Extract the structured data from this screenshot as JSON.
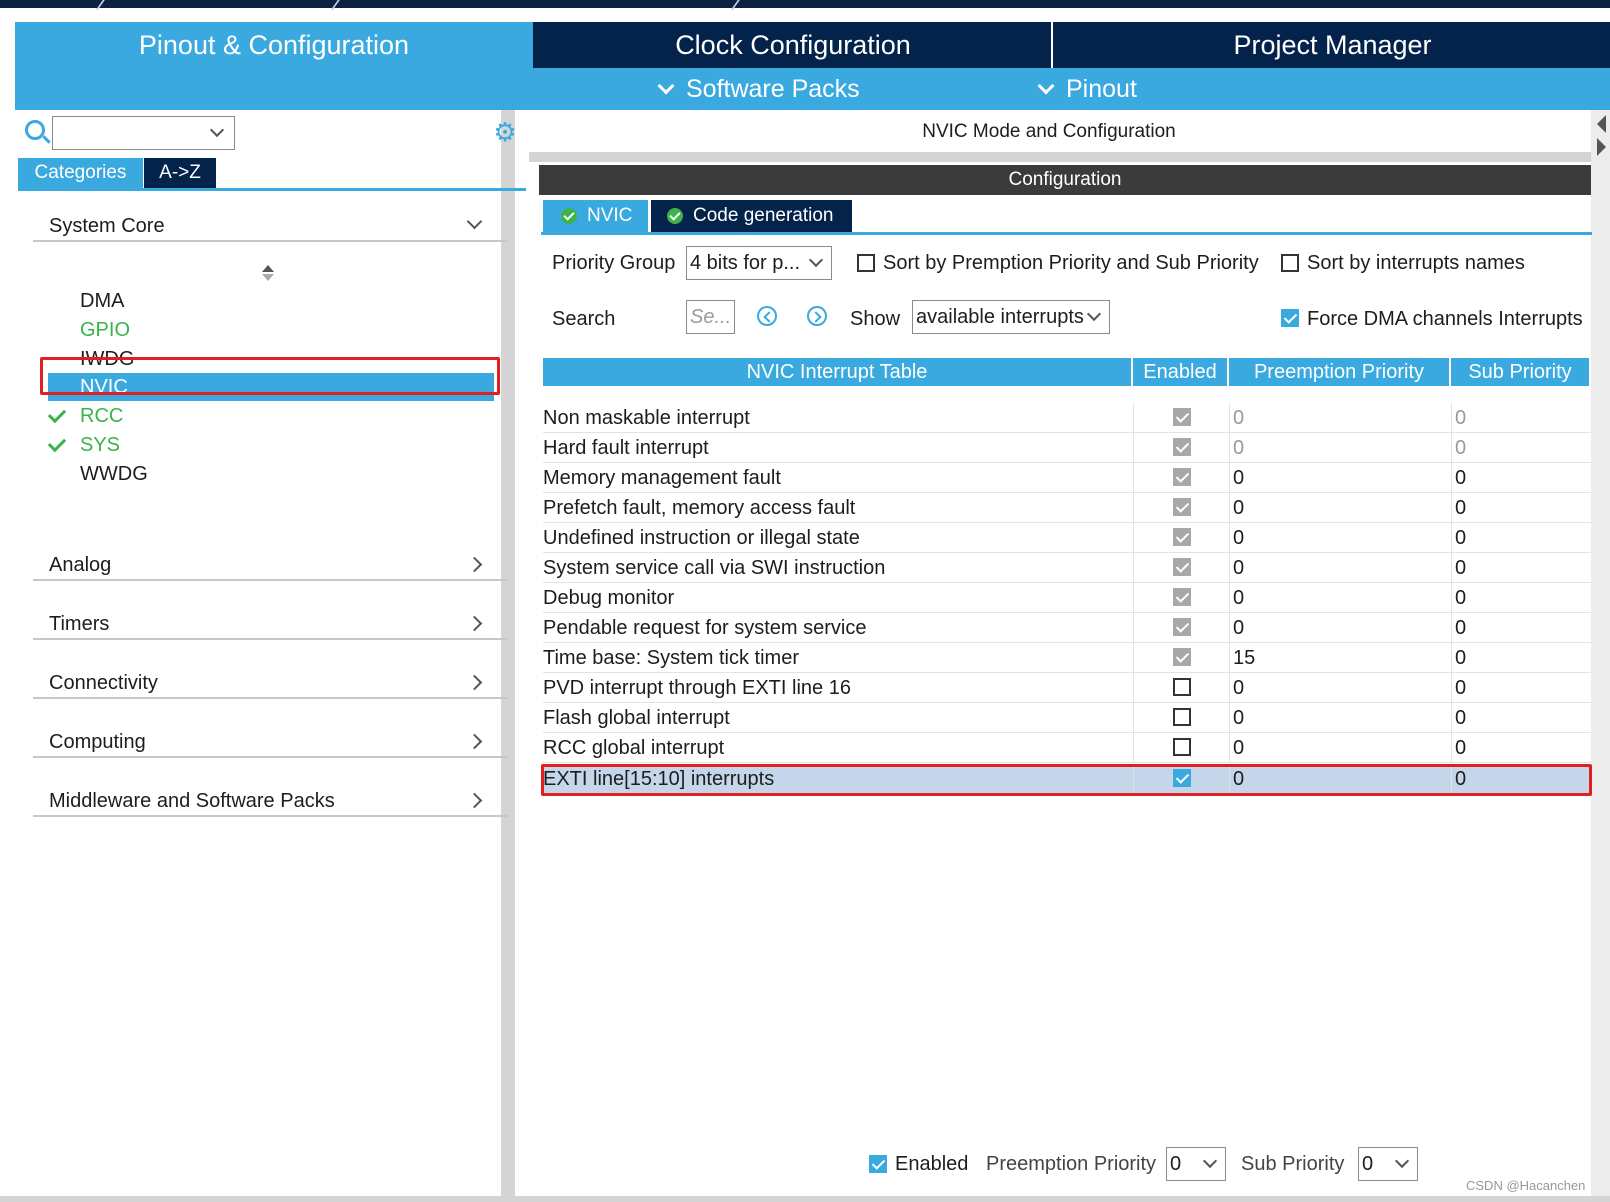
{
  "tabs": {
    "pinout": "Pinout & Configuration",
    "clock": "Clock Configuration",
    "project": "Project Manager"
  },
  "subbar": {
    "software_packs": "Software Packs",
    "pinout": "Pinout"
  },
  "left": {
    "search_value": "",
    "tab_categories": "Categories",
    "tab_az": "A->Z",
    "sections": {
      "system_core": "System Core",
      "analog": "Analog",
      "timers": "Timers",
      "connectivity": "Connectivity",
      "computing": "Computing",
      "middleware": "Middleware and Software Packs"
    },
    "system_core_items": {
      "dma": "DMA",
      "gpio": "GPIO",
      "iwdg": "IWDG",
      "nvic": "NVIC",
      "rcc": "RCC",
      "sys": "SYS",
      "wwdg": "WWDG"
    }
  },
  "right": {
    "mode_title": "NVIC Mode and Configuration",
    "config_title": "Configuration",
    "cfg_tabs": {
      "nvic": "NVIC",
      "code": "Code generation"
    },
    "priority_group_label": "Priority Group",
    "priority_group_value": "4 bits for p...",
    "sort_premption_label": "Sort by Premption Priority and Sub Priority",
    "sort_names_label": "Sort by interrupts names",
    "search_label": "Search",
    "search_placeholder": "Se...",
    "show_label": "Show",
    "show_value": "available interrupts",
    "force_dma_label": "Force DMA channels Interrupts",
    "table_headers": {
      "name": "NVIC Interrupt Table",
      "enabled": "Enabled",
      "preemption": "Preemption Priority",
      "sub": "Sub Priority"
    },
    "rows": [
      {
        "name": "Non maskable interrupt",
        "enabled": true,
        "preemption": "0",
        "sub": "0"
      },
      {
        "name": "Hard fault interrupt",
        "enabled": true,
        "preemption": "0",
        "sub": "0"
      },
      {
        "name": "Memory management fault",
        "enabled": true,
        "preemption": "0",
        "sub": "0"
      },
      {
        "name": "Prefetch fault, memory access fault",
        "enabled": true,
        "preemption": "0",
        "sub": "0"
      },
      {
        "name": "Undefined instruction or illegal state",
        "enabled": true,
        "preemption": "0",
        "sub": "0"
      },
      {
        "name": "System service call via SWI instruction",
        "enabled": true,
        "preemption": "0",
        "sub": "0"
      },
      {
        "name": "Debug monitor",
        "enabled": true,
        "preemption": "0",
        "sub": "0"
      },
      {
        "name": "Pendable request for system service",
        "enabled": true,
        "preemption": "0",
        "sub": "0"
      },
      {
        "name": "Time base: System tick timer",
        "enabled": true,
        "preemption": "15",
        "sub": "0"
      },
      {
        "name": "PVD interrupt through EXTI line 16",
        "enabled": false,
        "preemption": "0",
        "sub": "0"
      },
      {
        "name": "Flash global interrupt",
        "enabled": false,
        "preemption": "0",
        "sub": "0"
      },
      {
        "name": "RCC global interrupt",
        "enabled": false,
        "preemption": "0",
        "sub": "0"
      },
      {
        "name": "EXTI line[15:10] interrupts",
        "enabled": true,
        "preemption": "0",
        "sub": "0"
      }
    ],
    "bottom": {
      "enabled_label": "Enabled",
      "preemption_label": "Preemption Priority",
      "preemption_value": "0",
      "sub_label": "Sub Priority",
      "sub_value": "0"
    }
  },
  "watermark": "CSDN @Hacanchen",
  "colors": {
    "accent": "#39a9e0",
    "navy": "#03234b",
    "green": "#3cb34a",
    "highlight_red": "#e02020",
    "selected_row": "#c5d6ea"
  }
}
